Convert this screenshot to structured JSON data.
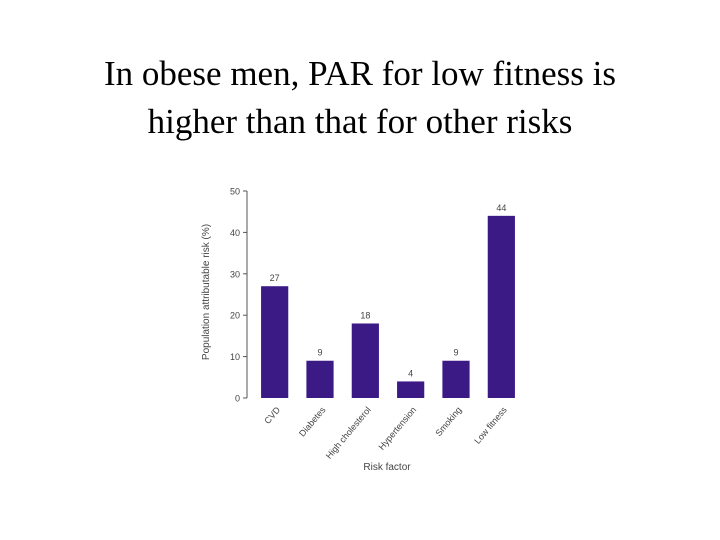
{
  "slide": {
    "title_line1": "In obese men, PAR for low fitness is",
    "title_line2": "higher than that for other risks"
  },
  "chart_data": {
    "type": "bar",
    "categories": [
      "CVD",
      "Diabetes",
      "High cholesterol",
      "Hypertension",
      "Smoking",
      "Low fitness"
    ],
    "values": [
      27,
      9,
      18,
      4,
      9,
      44
    ],
    "data_labels": [
      "27",
      "9",
      "18",
      "4",
      "9",
      "44"
    ],
    "ylabel": "Population attributable risk (%)",
    "xlabel": "Risk factor",
    "ylim": [
      0,
      50
    ],
    "yticks": [
      0,
      10,
      20,
      30,
      40,
      50
    ],
    "ytick_labels": [
      "0",
      "10",
      "20",
      "30",
      "40",
      "50"
    ],
    "grid": false,
    "bar_color": "#3b1a86"
  }
}
